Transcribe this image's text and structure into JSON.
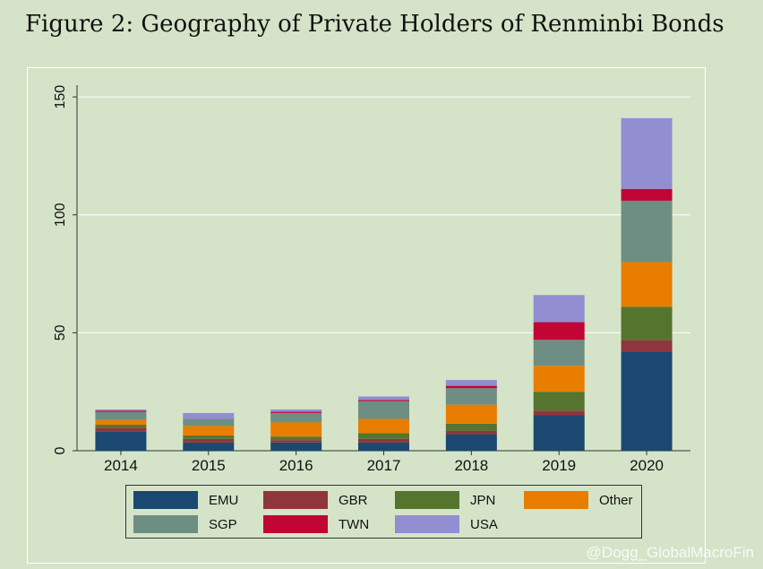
{
  "page": {
    "title": "Figure 2: Geography of Private Holders of Renminbi Bonds"
  },
  "watermark": {
    "text": "@Dogg_GlobalMacroFin"
  },
  "chart_data": {
    "type": "bar",
    "stacked": true,
    "title": "Figure 2: Geography of Private Holders of Renminbi Bonds",
    "xlabel": "",
    "ylabel": "",
    "categories": [
      "2014",
      "2015",
      "2016",
      "2017",
      "2018",
      "2019",
      "2020"
    ],
    "ylim": [
      0,
      155
    ],
    "yticks": [
      0,
      50,
      100,
      150
    ],
    "grid": true,
    "legend_position": "bottom",
    "series": [
      {
        "name": "EMU",
        "color": "#1b4871",
        "values": [
          8,
          3.5,
          3.5,
          3.5,
          7,
          15,
          42
        ]
      },
      {
        "name": "GBR",
        "color": "#90353b",
        "values": [
          1.5,
          1.5,
          1,
          1.5,
          1.5,
          2,
          5
        ]
      },
      {
        "name": "JPN",
        "color": "#55752f",
        "values": [
          1.5,
          1.5,
          1.5,
          2.5,
          3,
          8,
          14
        ]
      },
      {
        "name": "Other",
        "color": "#e87d00",
        "values": [
          2,
          4,
          6,
          6,
          8,
          11,
          19
        ]
      },
      {
        "name": "SGP",
        "color": "#6e8e84",
        "values": [
          3.5,
          3,
          4,
          7.5,
          7,
          11,
          26
        ]
      },
      {
        "name": "TWN",
        "color": "#c10534",
        "values": [
          0.5,
          0,
          0.5,
          0.5,
          1,
          7.5,
          5
        ]
      },
      {
        "name": "USA",
        "color": "#938dd2",
        "values": [
          0.5,
          2.5,
          1,
          1.5,
          2.5,
          11.5,
          30
        ]
      }
    ]
  }
}
